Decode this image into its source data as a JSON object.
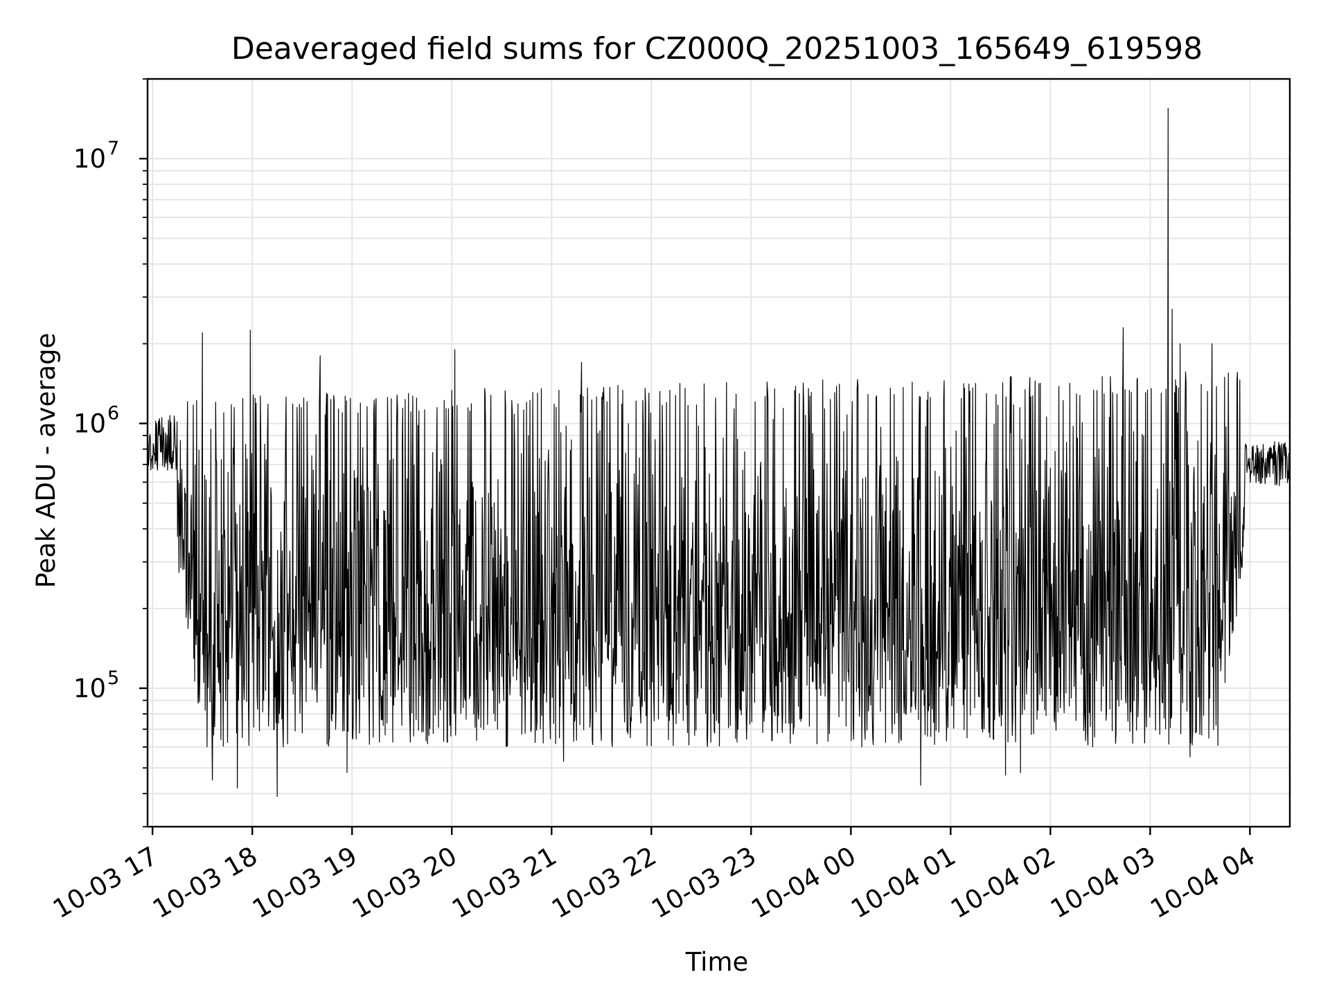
{
  "chart_data": {
    "type": "line",
    "title": "Deaveraged field sums for CZ000Q_20251003_165649_619598",
    "xlabel": "Time",
    "ylabel": "Peak ADU - average",
    "y_scale": "log",
    "ylim": [
      30000,
      20000000
    ],
    "xlim_hours": [
      16.95,
      28.4
    ],
    "grid": true,
    "line_color": "#000000",
    "grid_color": "#e5e5e5",
    "x_ticks": [
      {
        "hour": 17,
        "label": "10-03 17"
      },
      {
        "hour": 18,
        "label": "10-03 18"
      },
      {
        "hour": 19,
        "label": "10-03 19"
      },
      {
        "hour": 20,
        "label": "10-03 20"
      },
      {
        "hour": 21,
        "label": "10-03 21"
      },
      {
        "hour": 22,
        "label": "10-03 22"
      },
      {
        "hour": 23,
        "label": "10-03 23"
      },
      {
        "hour": 24,
        "label": "10-04 00"
      },
      {
        "hour": 25,
        "label": "10-04 01"
      },
      {
        "hour": 26,
        "label": "10-04 02"
      },
      {
        "hour": 27,
        "label": "10-04 03"
      },
      {
        "hour": 28,
        "label": "10-04 04"
      }
    ],
    "y_ticks": [
      {
        "value": 100000,
        "base": "10",
        "exp": "5"
      },
      {
        "value": 1000000,
        "base": "10",
        "exp": "6"
      },
      {
        "value": 10000000,
        "base": "10",
        "exp": "7"
      }
    ],
    "series": [
      {
        "name": "Peak ADU - average",
        "time_hours_start": 16.95,
        "time_hours_end": 28.4,
        "n_points": 2400,
        "baseline_quiet_start": 850000,
        "baseline_quiet_end": 700000,
        "upper_envelope": 1150000,
        "lower_envelope": 60000,
        "active_interval_hours": [
          17.25,
          27.95
        ],
        "spikes": [
          {
            "hour": 17.5,
            "value": 2200000
          },
          {
            "hour": 17.98,
            "value": 2250000
          },
          {
            "hour": 18.68,
            "value": 1800000
          },
          {
            "hour": 20.03,
            "value": 1900000
          },
          {
            "hour": 21.3,
            "value": 1700000
          },
          {
            "hour": 26.73,
            "value": 2300000
          },
          {
            "hour": 27.18,
            "value": 15500000
          },
          {
            "hour": 27.22,
            "value": 2700000
          },
          {
            "hour": 27.3,
            "value": 2000000
          },
          {
            "hour": 27.4,
            "value": 1600000
          },
          {
            "hour": 27.62,
            "value": 2000000
          }
        ],
        "dips": [
          {
            "hour": 18.25,
            "value": 39000
          },
          {
            "hour": 17.85,
            "value": 42000
          },
          {
            "hour": 17.6,
            "value": 45000
          },
          {
            "hour": 24.7,
            "value": 43000
          },
          {
            "hour": 25.55,
            "value": 47000
          },
          {
            "hour": 25.7,
            "value": 48000
          },
          {
            "hour": 18.95,
            "value": 48000
          },
          {
            "hour": 21.12,
            "value": 53000
          },
          {
            "hour": 27.4,
            "value": 55000
          }
        ]
      }
    ]
  }
}
